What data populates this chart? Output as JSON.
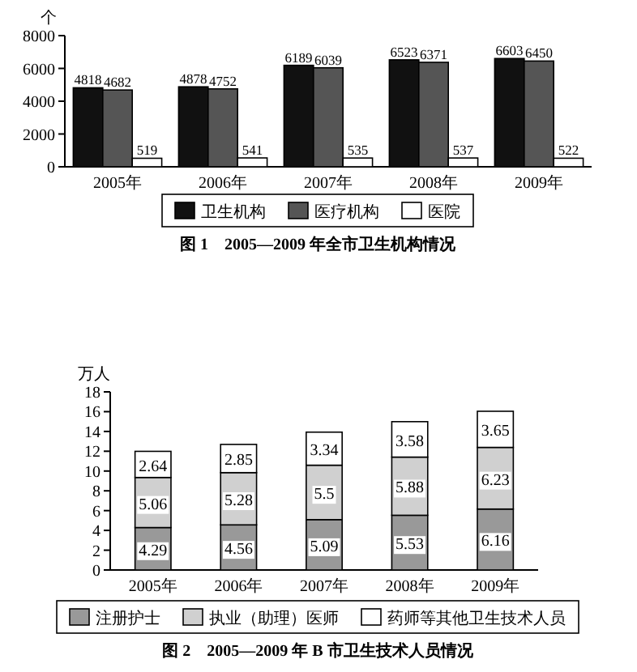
{
  "chart_data": [
    {
      "type": "bar",
      "title": "图 1　2005—2009 年全市卫生机构情况",
      "ylabel": "个",
      "categories": [
        "2005年",
        "2006年",
        "2007年",
        "2008年",
        "2009年"
      ],
      "series": [
        {
          "name": "卫生机构",
          "color": "#111111",
          "values": [
            4818,
            4878,
            6189,
            6523,
            6603
          ]
        },
        {
          "name": "医疗机构",
          "color": "#555555",
          "values": [
            4682,
            4752,
            6039,
            6371,
            6450
          ]
        },
        {
          "name": "医院",
          "color": "#ffffff",
          "values": [
            519,
            541,
            535,
            537,
            522
          ]
        }
      ],
      "ylim": [
        0,
        8000
      ],
      "yticks": [
        0,
        2000,
        4000,
        6000,
        8000
      ],
      "data_labels": true,
      "legend": "bottom"
    },
    {
      "type": "bar",
      "stacked": true,
      "title": "图 2　2005—2009 年 B 市卫生技术人员情况",
      "ylabel": "万人",
      "categories": [
        "2005年",
        "2006年",
        "2007年",
        "2008年",
        "2009年"
      ],
      "series": [
        {
          "name": "注册护士",
          "color": "#999999",
          "values": [
            4.29,
            4.56,
            5.09,
            5.53,
            6.16
          ]
        },
        {
          "name": "执业（助理）医师",
          "color": "#d0d0d0",
          "values": [
            5.06,
            5.28,
            5.5,
            5.88,
            6.23
          ]
        },
        {
          "name": "药师等其他卫生技术人员",
          "color": "#ffffff",
          "values": [
            2.64,
            2.85,
            3.34,
            3.58,
            3.65
          ]
        }
      ],
      "ylim": [
        0,
        18
      ],
      "yticks": [
        0,
        2,
        4,
        6,
        8,
        10,
        12,
        14,
        16,
        18
      ],
      "data_labels": true,
      "legend": "bottom"
    }
  ]
}
